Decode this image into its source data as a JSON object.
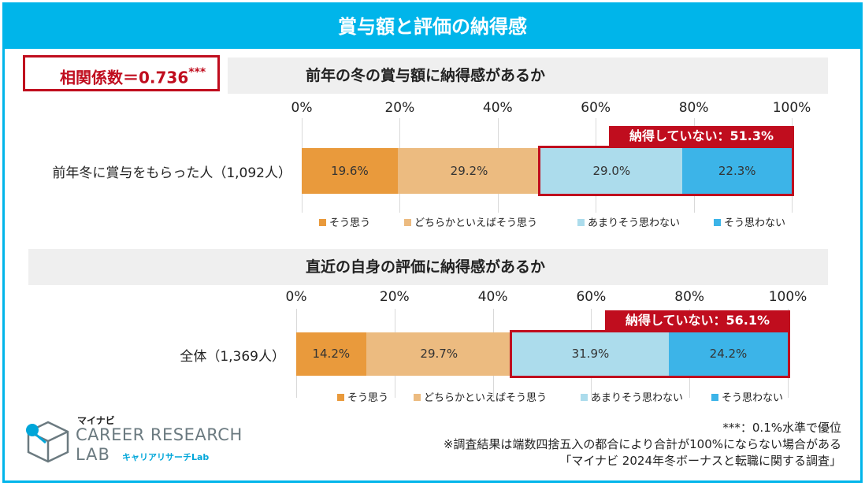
{
  "title": "賞与額と評価の納得感",
  "correlation": {
    "label": "相関係数＝0.736",
    "sig": "***"
  },
  "legend": [
    "そう思う",
    "どちらかといえばそう思う",
    "あまりそう思わない",
    "そう思わない"
  ],
  "colors": {
    "s1": "#e99a3c",
    "s2": "#ecbb80",
    "s3": "#acdcec",
    "s4": "#3cb4e8",
    "accent": "#00b5ea",
    "red": "#c00d1e"
  },
  "chart_data": [
    {
      "type": "bar",
      "orientation": "horizontal-stacked",
      "title": "前年の冬の賞与額に納得感があるか",
      "category": "前年冬に賞与をもらった人（1,092人）",
      "ticks": [
        "0%",
        "20%",
        "40%",
        "60%",
        "80%",
        "100%"
      ],
      "series": [
        {
          "name": "そう思う",
          "value": 19.6,
          "label": "19.6%"
        },
        {
          "name": "どちらかといえばそう思う",
          "value": 29.2,
          "label": "29.2%"
        },
        {
          "name": "あまりそう思わない",
          "value": 29.0,
          "label": "29.0%"
        },
        {
          "name": "そう思わない",
          "value": 22.3,
          "label": "22.3%"
        }
      ],
      "highlight_label": "納得していない：51.3%",
      "xlim": [
        0,
        100
      ]
    },
    {
      "type": "bar",
      "orientation": "horizontal-stacked",
      "title": "直近の自身の評価に納得感があるか",
      "category": "全体（1,369人）",
      "ticks": [
        "0%",
        "20%",
        "40%",
        "60%",
        "80%",
        "100%"
      ],
      "series": [
        {
          "name": "そう思う",
          "value": 14.2,
          "label": "14.2%"
        },
        {
          "name": "どちらかといえばそう思う",
          "value": 29.7,
          "label": "29.7%"
        },
        {
          "name": "あまりそう思わない",
          "value": 31.9,
          "label": "31.9%"
        },
        {
          "name": "そう思わない",
          "value": 24.2,
          "label": "24.2%"
        }
      ],
      "highlight_label": "納得していない：56.1%",
      "xlim": [
        0,
        100
      ]
    }
  ],
  "notes": [
    "***：0.1%水準で優位",
    "※調査結果は端数四捨五入の都合により合計が100%にならない場合がある",
    "「マイナビ 2024年冬ボーナスと転職に関する調査」"
  ],
  "logo": {
    "line1": "マイナビ",
    "line2": "CAREER RESEARCH",
    "line3": "LAB",
    "line4": "キャリアリサーチLab"
  }
}
